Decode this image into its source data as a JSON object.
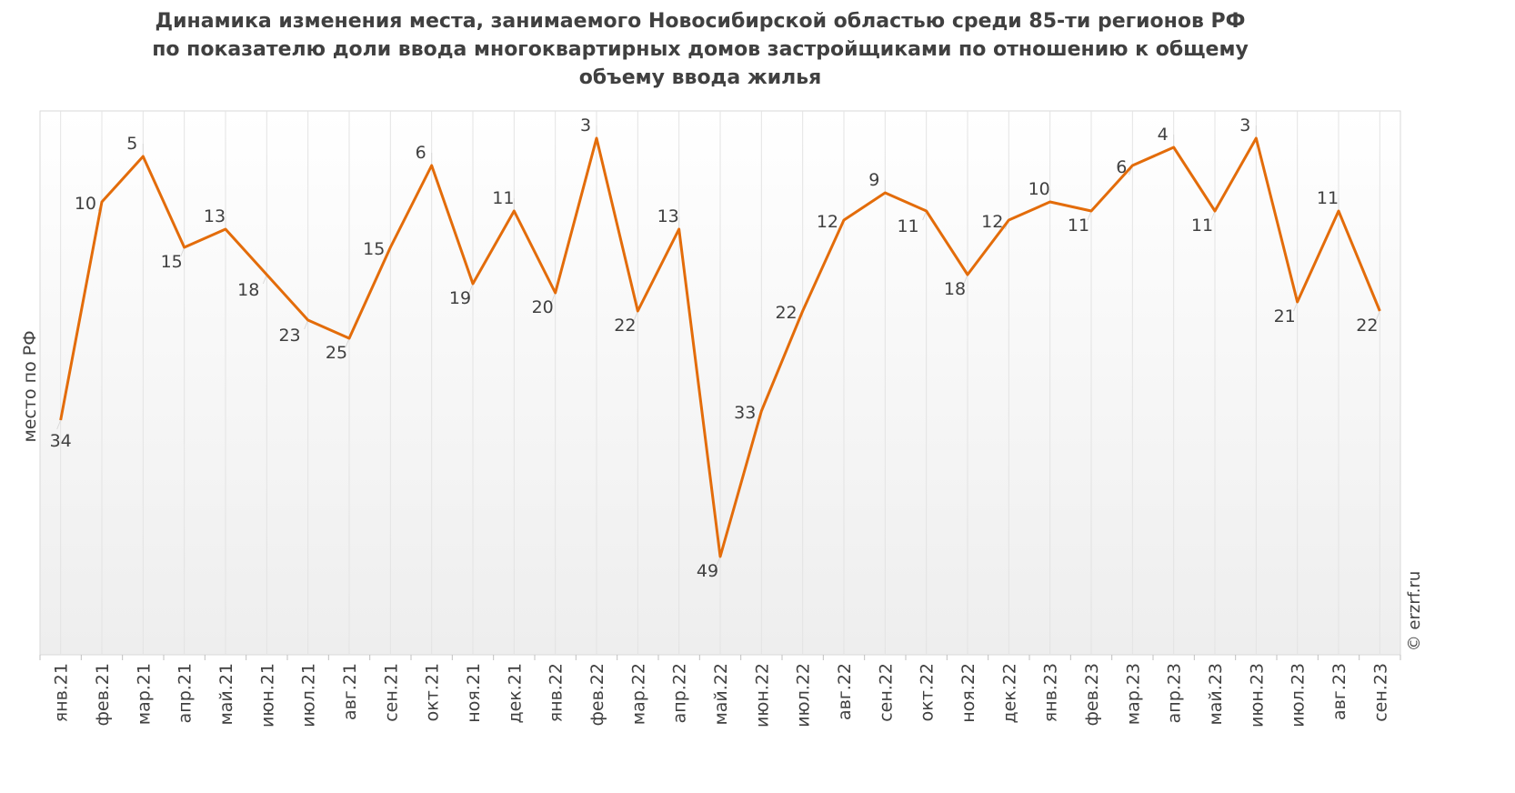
{
  "chart_data": {
    "type": "line",
    "title": [
      "Динамика изменения места, занимаемого Новосибирской областью среди 85-ти регионов РФ",
      "по показателю доли ввода многоквартирных домов застройщиками по отношению к общему",
      "объему ввода жилья"
    ],
    "ylabel": "место по РФ",
    "xlabel": "",
    "y_reversed": true,
    "ylim": [
      1,
      62
    ],
    "grid": "vertical",
    "line_color": "#e36c0a",
    "categories": [
      "янв.21",
      "фев.21",
      "мар.21",
      "апр.21",
      "май.21",
      "июн.21",
      "июл.21",
      "авг.21",
      "сен.21",
      "окт.21",
      "ноя.21",
      "дек.21",
      "янв.22",
      "фев.22",
      "мар.22",
      "апр.22",
      "май.22",
      "июн.22",
      "июл.22",
      "авг.22",
      "сен.22",
      "окт.22",
      "ноя.22",
      "дек.22",
      "янв.23",
      "фев.23",
      "мар.23",
      "апр.23",
      "май.23",
      "июн.23",
      "июл.23",
      "авг.23",
      "сен.23"
    ],
    "values": [
      34,
      10,
      5,
      15,
      13,
      18,
      23,
      25,
      15,
      6,
      19,
      11,
      20,
      3,
      22,
      13,
      49,
      33,
      22,
      12,
      9,
      11,
      18,
      12,
      10,
      11,
      6,
      4,
      11,
      3,
      21,
      11,
      22
    ]
  },
  "credit": "© erzrf.ru"
}
